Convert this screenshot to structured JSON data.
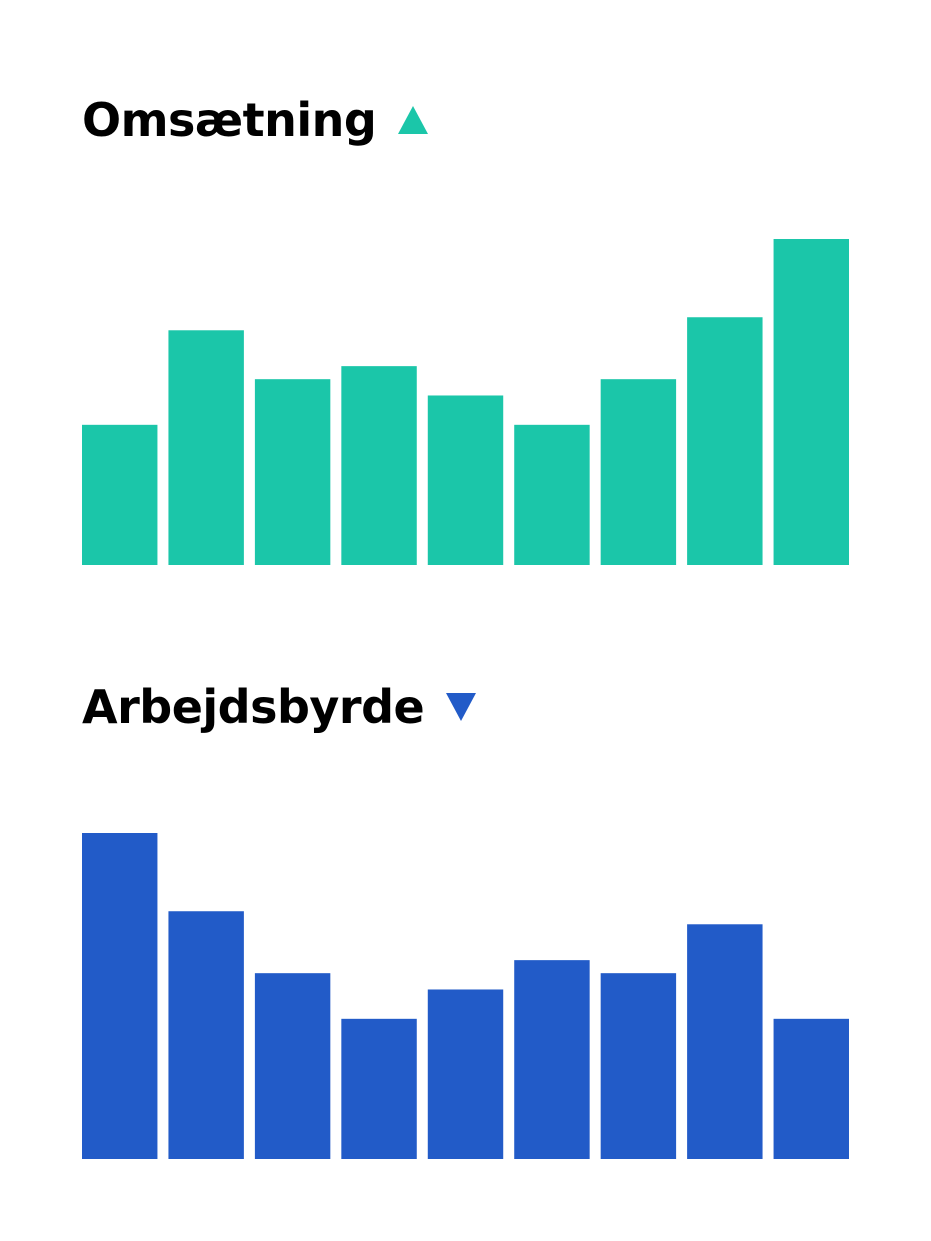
{
  "chart_data": [
    {
      "type": "bar",
      "title": "Omsætning",
      "trend": "up",
      "color": "#1BC6A9",
      "values": [
        43,
        72,
        57,
        61,
        52,
        43,
        57,
        76,
        100
      ],
      "ylim": [
        0,
        100
      ],
      "grid": false,
      "axes_visible": false
    },
    {
      "type": "bar",
      "title": "Arbejdsbyrde",
      "trend": "down",
      "color": "#225BC8",
      "values": [
        100,
        76,
        57,
        43,
        52,
        61,
        57,
        72,
        43
      ],
      "ylim": [
        0,
        100
      ],
      "grid": false,
      "axes_visible": false
    }
  ],
  "icons": {
    "up": "triangle-up-icon",
    "down": "triangle-down-icon"
  }
}
